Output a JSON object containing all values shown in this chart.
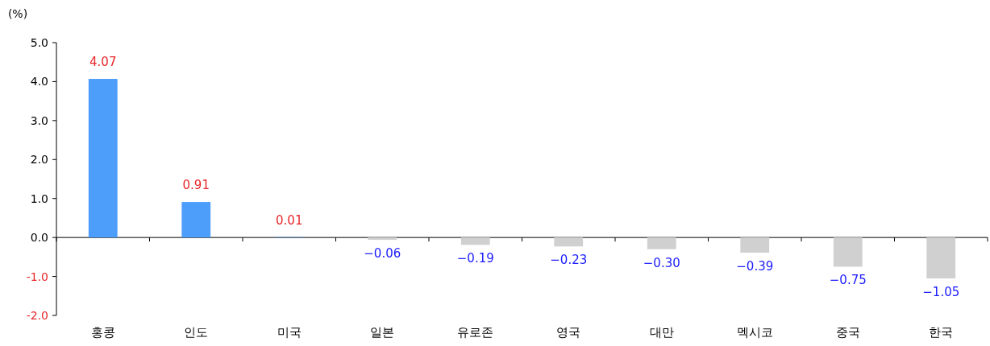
{
  "chart_data": {
    "type": "bar",
    "ylabel": "(%)",
    "categories": [
      "홍콩",
      "인도",
      "미국",
      "일본",
      "유로존",
      "영국",
      "대만",
      "멕시코",
      "중국",
      "한국"
    ],
    "values": [
      4.07,
      0.91,
      0.01,
      -0.06,
      -0.19,
      -0.23,
      -0.3,
      -0.39,
      -0.75,
      -1.05
    ],
    "colors": [
      "#4d9dfb",
      "#4d9dfb",
      "#4d9dfb",
      "#d0d0d0",
      "#d0d0d0",
      "#d0d0d0",
      "#d0d0d0",
      "#d0d0d0",
      "#d0d0d0",
      "#d0d0d0"
    ],
    "value_labels": [
      "4.07",
      "0.91",
      "0.01",
      "−0.06",
      "−0.19",
      "−0.23",
      "−0.30",
      "−0.39",
      "−0.75",
      "−1.05"
    ],
    "ylim": [
      -2,
      5
    ],
    "yticks": [
      {
        "value": -2,
        "label": "-2.0"
      },
      {
        "value": -1,
        "label": "-1.0"
      },
      {
        "value": 0,
        "label": "0.0"
      },
      {
        "value": 1,
        "label": "1.0"
      },
      {
        "value": 2,
        "label": "2.0"
      },
      {
        "value": 3,
        "label": "3.0"
      },
      {
        "value": 4,
        "label": "4.0"
      },
      {
        "value": 5,
        "label": "5.0"
      }
    ]
  }
}
